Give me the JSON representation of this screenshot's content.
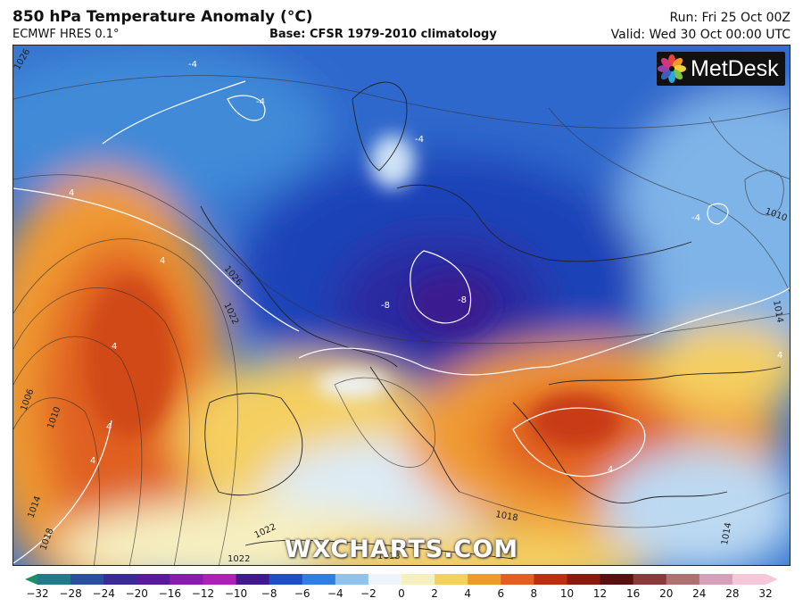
{
  "header": {
    "title": "850 hPa Temperature Anomaly (°C)",
    "model": "ECMWF HRES 0.1°",
    "base": "Base: CFSR 1979-2010 climatology",
    "run": "Run: Fri 25 Oct 00Z",
    "valid": "Valid: Wed 30 Oct 00:00 UTC"
  },
  "logo": {
    "text": "MetDesk",
    "icon": "metdesk-flower-icon"
  },
  "watermark": "WXCHARTS.COM",
  "map": {
    "isobar_labels": [
      "1026",
      "1026",
      "1022",
      "1006",
      "1010",
      "1014",
      "1018",
      "1022",
      "1018",
      "1014",
      "1010",
      "1014",
      "1018",
      "1022"
    ],
    "anomaly_labels": [
      "4",
      "-4",
      "-4",
      "-8",
      "-8",
      "4",
      "4",
      "-4",
      "-4",
      "4",
      "4",
      "4",
      "4"
    ]
  },
  "colorbar": {
    "ticks": [
      "−32",
      "−28",
      "−24",
      "−20",
      "−16",
      "−12",
      "−10",
      "−8",
      "−6",
      "−4",
      "−2",
      "0",
      "2",
      "4",
      "6",
      "8",
      "10",
      "12",
      "16",
      "20",
      "24",
      "28",
      "32"
    ],
    "colors": [
      "#1a8f6a",
      "#1f7a8a",
      "#2a4fa0",
      "#3a2a9a",
      "#5a1aa0",
      "#8a1ab0",
      "#b020b8",
      "#401890",
      "#1e4fc0",
      "#2f7fe0",
      "#8ec4ef",
      "#eef4fa",
      "#f6efc0",
      "#f5cf60",
      "#ef9a30",
      "#e06020",
      "#b83010",
      "#8a1a10",
      "#5a1010",
      "#8a3a3a",
      "#b07070",
      "#d8a0b8",
      "#f4c8d8"
    ]
  }
}
